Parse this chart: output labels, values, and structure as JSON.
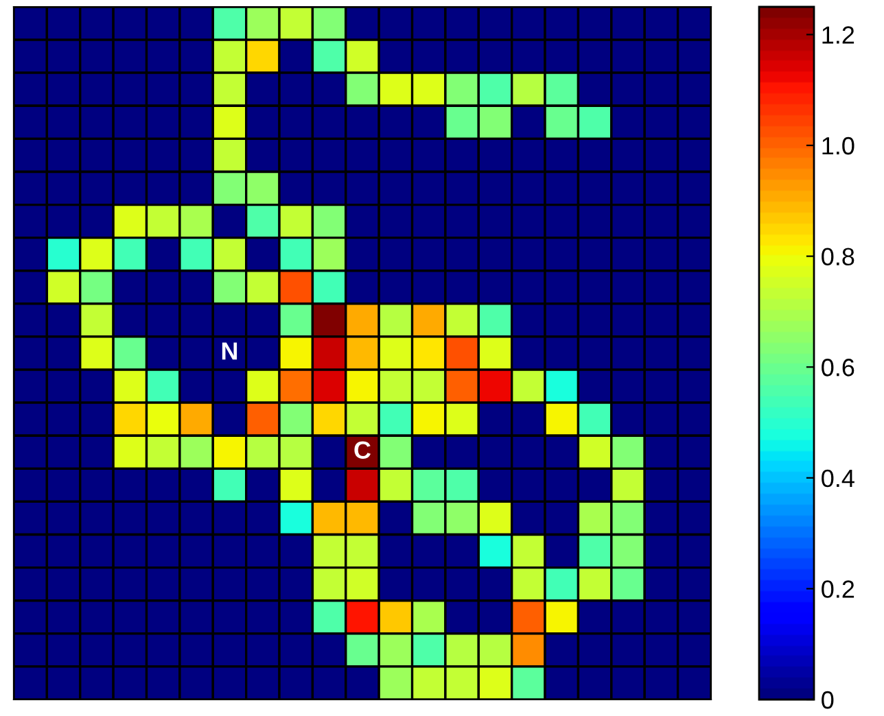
{
  "chart_data": {
    "type": "heatmap",
    "categories": [
      null,
      null,
      null,
      null,
      null,
      null,
      null,
      null,
      null,
      null,
      null,
      null,
      null,
      null,
      null,
      null,
      null,
      null,
      null,
      null,
      null
    ],
    "y_categories": [
      null,
      null,
      null,
      null,
      null,
      null,
      null,
      null,
      null,
      null,
      null,
      null,
      null,
      null,
      null,
      null,
      null,
      null,
      null,
      null,
      null
    ],
    "cells": [
      [
        0,
        0,
        0,
        0,
        0,
        0,
        0.55,
        0.68,
        0.74,
        0.64,
        0,
        0,
        0,
        0,
        0,
        0,
        0,
        0,
        0,
        0,
        0
      ],
      [
        0,
        0,
        0,
        0,
        0,
        0,
        0.74,
        0.84,
        0,
        0.55,
        0.76,
        0,
        0,
        0,
        0,
        0,
        0,
        0,
        0,
        0,
        0
      ],
      [
        0,
        0,
        0,
        0,
        0,
        0,
        0.74,
        0,
        0,
        0,
        0.64,
        0.78,
        0.78,
        0.64,
        0.55,
        0.72,
        0.58,
        0,
        0,
        0,
        0
      ],
      [
        0,
        0,
        0,
        0,
        0,
        0,
        0.77,
        0,
        0,
        0,
        0,
        0,
        0,
        0.6,
        0.64,
        0,
        0.6,
        0.56,
        0,
        0,
        0
      ],
      [
        0,
        0,
        0,
        0,
        0,
        0,
        0.74,
        0,
        0,
        0,
        0,
        0,
        0,
        0,
        0,
        0,
        0,
        0,
        0,
        0,
        0
      ],
      [
        0,
        0,
        0,
        0,
        0,
        0,
        0.64,
        0.66,
        0,
        0,
        0,
        0,
        0,
        0,
        0,
        0,
        0,
        0,
        0,
        0,
        0
      ],
      [
        0,
        0,
        0,
        0.78,
        0.73,
        0.69,
        0,
        0.55,
        0.73,
        0.64,
        0,
        0,
        0,
        0,
        0,
        0,
        0,
        0,
        0,
        0,
        0
      ],
      [
        0,
        0.5,
        0.78,
        0.53,
        0,
        0.54,
        0.74,
        0,
        0.53,
        0.68,
        0,
        0,
        0,
        0,
        0,
        0,
        0,
        0,
        0,
        0,
        0
      ],
      [
        0,
        0.76,
        0.62,
        0,
        0,
        0,
        0.64,
        0.74,
        1.02,
        0.53,
        0,
        0,
        0,
        0,
        0,
        0,
        0,
        0,
        0,
        0,
        0
      ],
      [
        0,
        0,
        0.73,
        0,
        0,
        0,
        0,
        0,
        0.6,
        1.25,
        0.9,
        0.72,
        0.9,
        0.73,
        0.56,
        0,
        0,
        0,
        0,
        0,
        0
      ],
      [
        0,
        0,
        0.78,
        0.6,
        0,
        0,
        0,
        0,
        0.82,
        1.17,
        0.88,
        0.77,
        0.83,
        1.02,
        0.77,
        0,
        0,
        0,
        0,
        0,
        0
      ],
      [
        0,
        0,
        0,
        0.78,
        0.53,
        0,
        0,
        0.78,
        0.98,
        1.15,
        0.82,
        0.74,
        0.74,
        1.0,
        1.12,
        0.74,
        0.48,
        0,
        0,
        0,
        0
      ],
      [
        0,
        0,
        0,
        0.84,
        0.8,
        0.9,
        0,
        1.0,
        0.64,
        0.84,
        0.74,
        0.53,
        0.82,
        0.78,
        0,
        0,
        0.82,
        0.54,
        0,
        0,
        0
      ],
      [
        0,
        0,
        0,
        0.78,
        0.73,
        0.68,
        0.81,
        0.72,
        0.72,
        0,
        1.25,
        0.64,
        0,
        0,
        0,
        0,
        0,
        0.76,
        0.64,
        0,
        0
      ],
      [
        0,
        0,
        0,
        0,
        0,
        0,
        0.53,
        0,
        0.78,
        0,
        1.17,
        0.74,
        0.57,
        0.55,
        0,
        0,
        0,
        0,
        0.74,
        0,
        0
      ],
      [
        0,
        0,
        0,
        0,
        0,
        0,
        0,
        0,
        0.47,
        0.88,
        0.88,
        0,
        0.64,
        0.66,
        0.78,
        0,
        0,
        0.7,
        0.64,
        0,
        0
      ],
      [
        0,
        0,
        0,
        0,
        0,
        0,
        0,
        0,
        0,
        0.73,
        0.74,
        0,
        0,
        0,
        0.47,
        0.74,
        0,
        0.55,
        0.64,
        0,
        0
      ],
      [
        0,
        0,
        0,
        0,
        0,
        0,
        0,
        0,
        0,
        0.74,
        0.76,
        0,
        0,
        0,
        0,
        0.74,
        0.54,
        0.74,
        0.6,
        0,
        0
      ],
      [
        0,
        0,
        0,
        0,
        0,
        0,
        0,
        0,
        0,
        0.55,
        1.1,
        0.86,
        0.7,
        0,
        0,
        1.0,
        0.82,
        0,
        0,
        0,
        0
      ],
      [
        0,
        0,
        0,
        0,
        0,
        0,
        0,
        0,
        0,
        0,
        0.6,
        0.68,
        0.55,
        0.72,
        0.72,
        0.94,
        0,
        0,
        0,
        0,
        0
      ],
      [
        0,
        0,
        0,
        0,
        0,
        0,
        0,
        0,
        0,
        0,
        0,
        0.68,
        0.74,
        0.74,
        0.77,
        0.58,
        0,
        0,
        0,
        0,
        0
      ]
    ],
    "clim": [
      0,
      1.25
    ],
    "cticks": [
      0,
      0.2,
      0.4,
      0.6,
      0.8,
      {
        "value": 1.0,
        "label": "1.0"
      },
      1.2
    ],
    "annotations": [
      "N",
      "C"
    ]
  }
}
